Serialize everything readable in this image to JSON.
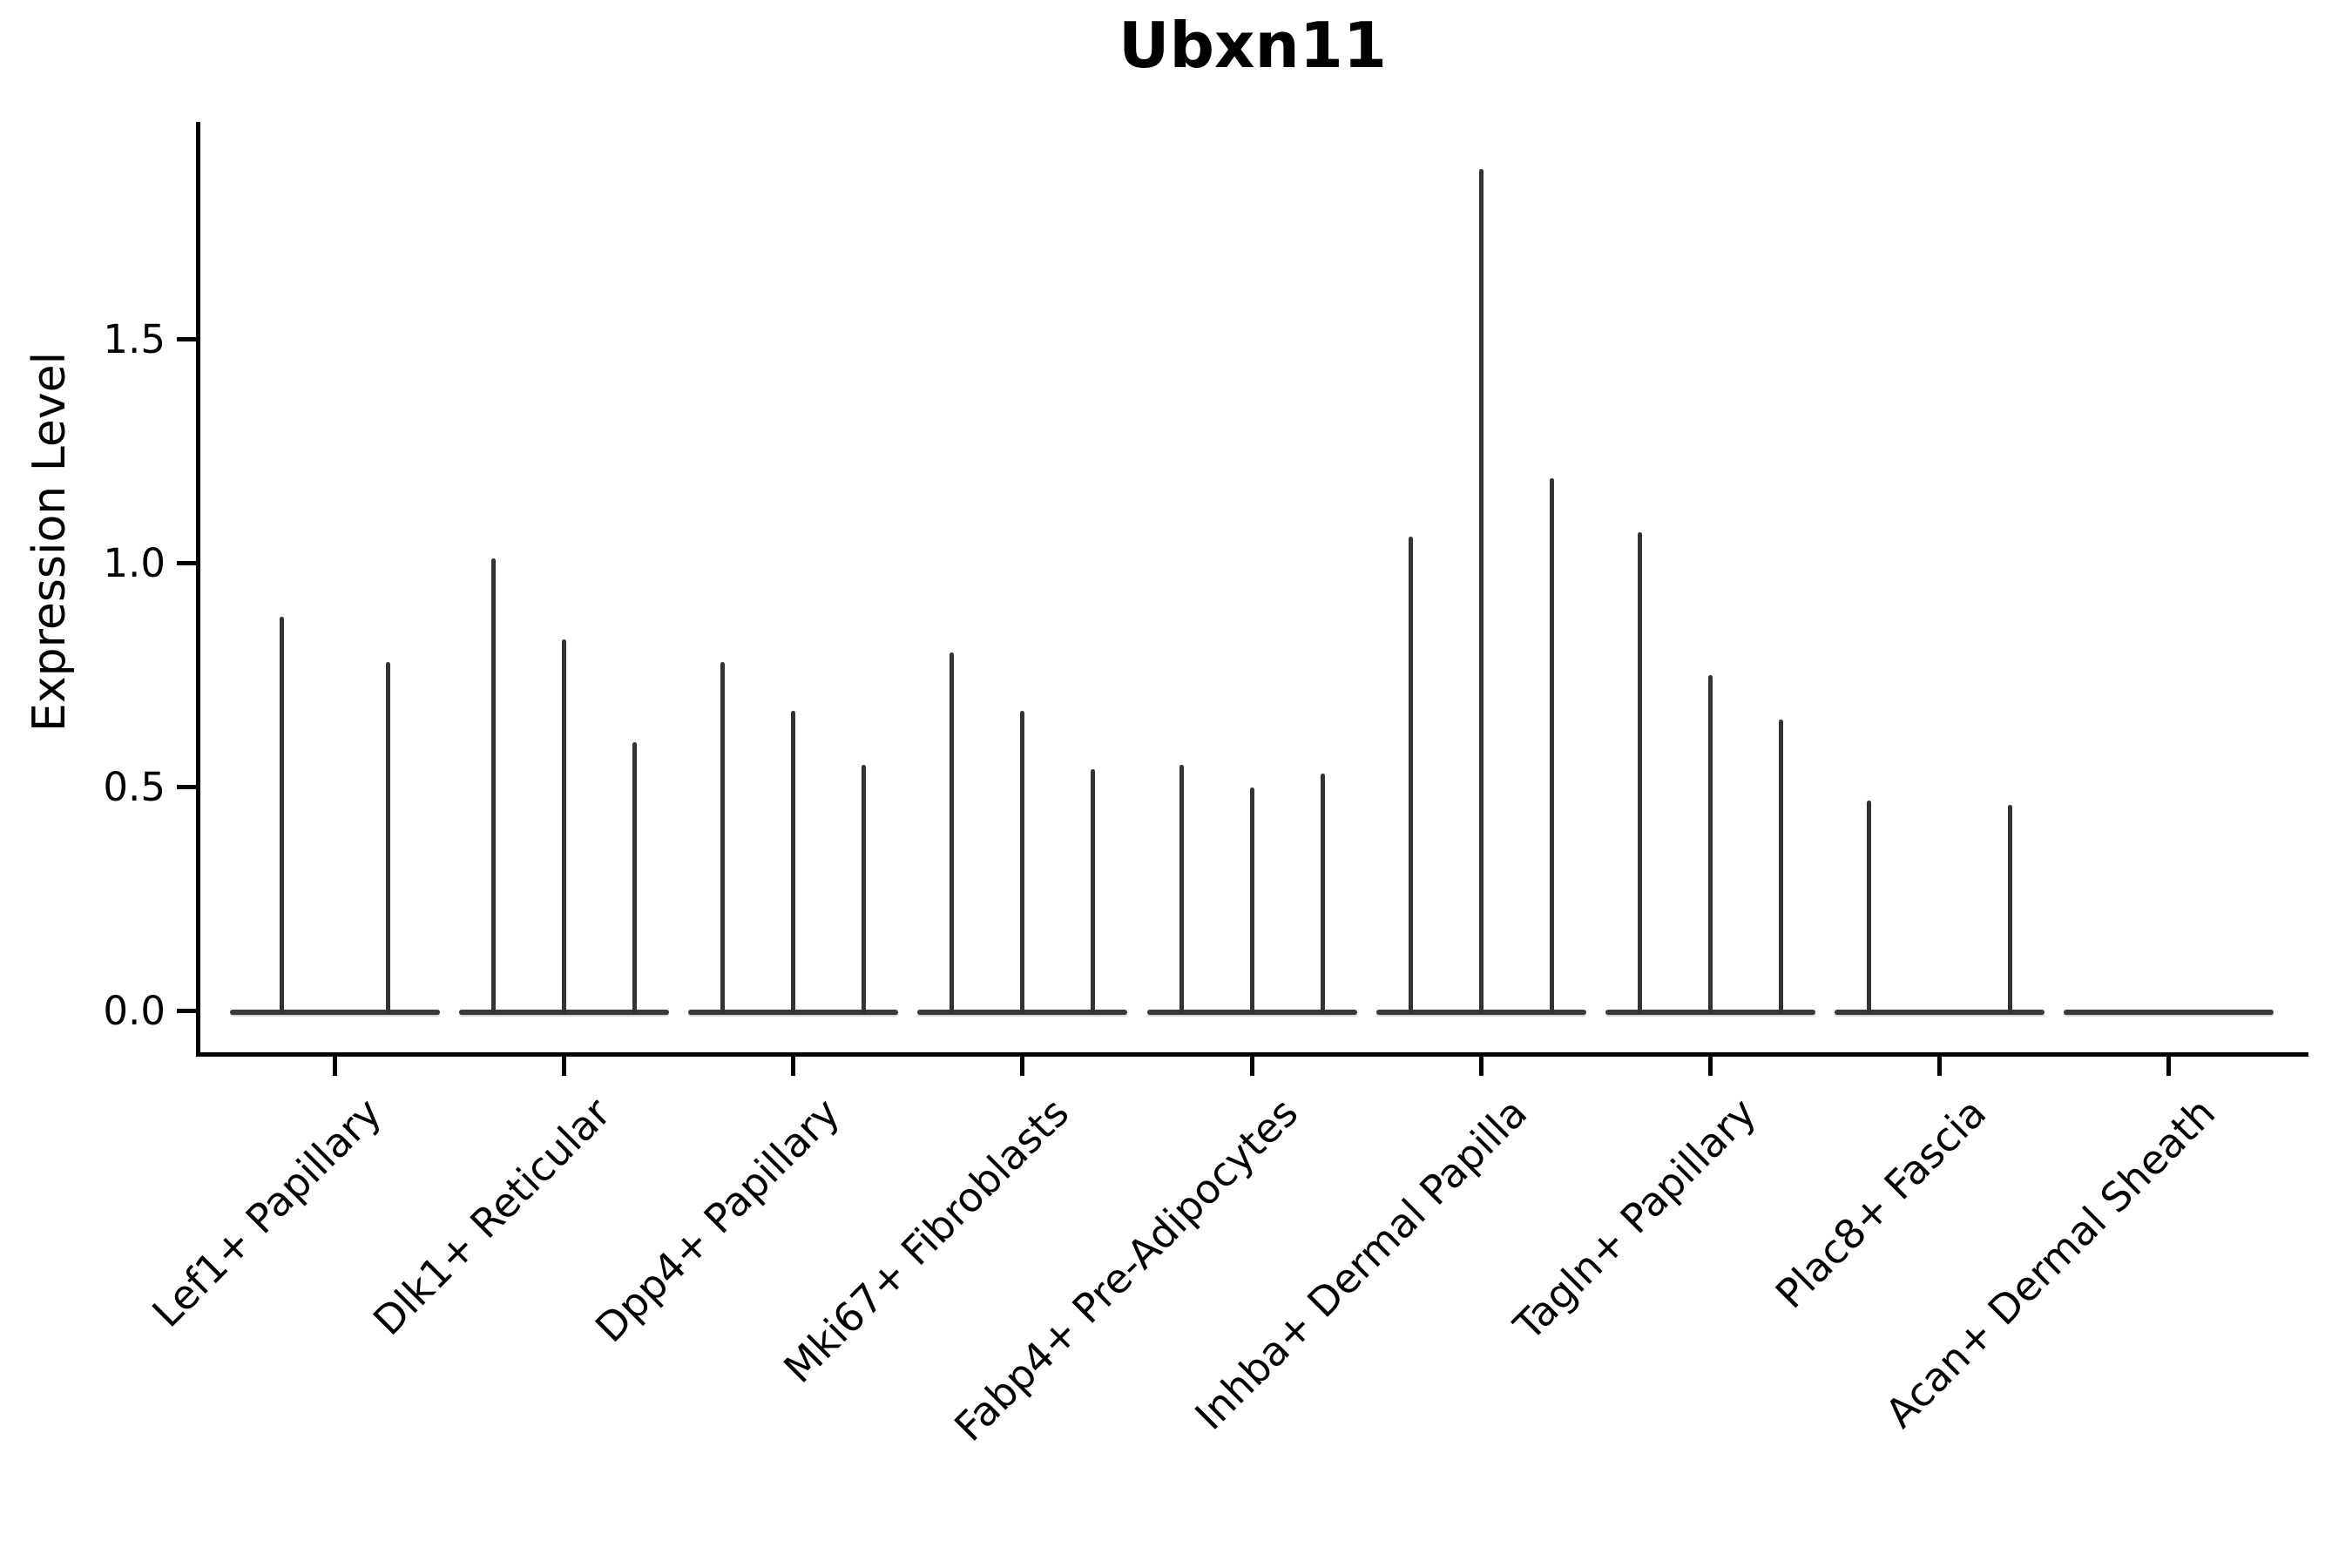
{
  "chart_data": {
    "type": "violin",
    "title": "Ubxn11",
    "ylabel": "Expression Level",
    "xlabel": "",
    "grid": false,
    "legend": null,
    "ylim": [
      -0.1,
      1.99
    ],
    "y_ticks": [
      {
        "label": "0.0",
        "value": 0.0
      },
      {
        "label": "0.5",
        "value": 0.5
      },
      {
        "label": "1.0",
        "value": 1.0
      },
      {
        "label": "1.5",
        "value": 1.5
      }
    ],
    "categories": [
      "Lef1+ Papillary",
      "Dlk1+ Reticular",
      "Dpp4+ Papillary",
      "Mki67+ Fibroblasts",
      "Fabp4+ Pre-Adipocytes",
      "Inhba+ Dermal Papilla",
      "Tagln+ Papillary",
      "Plac8+ Fascia",
      "Acan+ Dermal Sheath"
    ],
    "groups": [
      {
        "label": "Lef1+ Papillary",
        "violins": [
          {
            "slot": -0.75,
            "max": 0.88
          },
          {
            "slot": 0.75,
            "max": 0.78
          }
        ]
      },
      {
        "label": "Dlk1+ Reticular",
        "violins": [
          {
            "slot": -1,
            "max": 1.01
          },
          {
            "slot": 0,
            "max": 0.83
          },
          {
            "slot": 1,
            "max": 0.6
          }
        ]
      },
      {
        "label": "Dpp4+ Papillary",
        "violins": [
          {
            "slot": -1,
            "max": 0.78
          },
          {
            "slot": 0,
            "max": 0.67
          },
          {
            "slot": 1,
            "max": 0.55
          }
        ]
      },
      {
        "label": "Mki67+ Fibroblasts",
        "violins": [
          {
            "slot": -1,
            "max": 0.8
          },
          {
            "slot": 0,
            "max": 0.67
          },
          {
            "slot": 1,
            "max": 0.54
          }
        ]
      },
      {
        "label": "Fabp4+ Pre-Adipocytes",
        "violins": [
          {
            "slot": -1,
            "max": 0.55
          },
          {
            "slot": 0,
            "max": 0.5
          },
          {
            "slot": 1,
            "max": 0.53
          }
        ]
      },
      {
        "label": "Inhba+ Dermal Papilla",
        "violins": [
          {
            "slot": -1,
            "max": 1.06
          },
          {
            "slot": 0,
            "max": 1.88
          },
          {
            "slot": 1,
            "max": 1.19
          }
        ]
      },
      {
        "label": "Tagln+ Papillary",
        "violins": [
          {
            "slot": -1,
            "max": 1.07
          },
          {
            "slot": 0,
            "max": 0.75
          },
          {
            "slot": 1,
            "max": 0.65
          }
        ]
      },
      {
        "label": "Plac8+ Fascia",
        "violins": [
          {
            "slot": -1,
            "max": 0.47
          },
          {
            "slot": 0,
            "max": 0.0
          },
          {
            "slot": 1,
            "max": 0.46
          }
        ]
      },
      {
        "label": "Acan+ Dermal Sheath",
        "violins": [
          {
            "slot": -1,
            "max": 0.0
          },
          {
            "slot": 0,
            "max": 0.0
          },
          {
            "slot": 1,
            "max": 0.0
          }
        ]
      }
    ],
    "colors": {
      "spike": "#333333",
      "baseline": "#3a3a3a",
      "spine": "#000000",
      "background": "#ffffff"
    }
  }
}
